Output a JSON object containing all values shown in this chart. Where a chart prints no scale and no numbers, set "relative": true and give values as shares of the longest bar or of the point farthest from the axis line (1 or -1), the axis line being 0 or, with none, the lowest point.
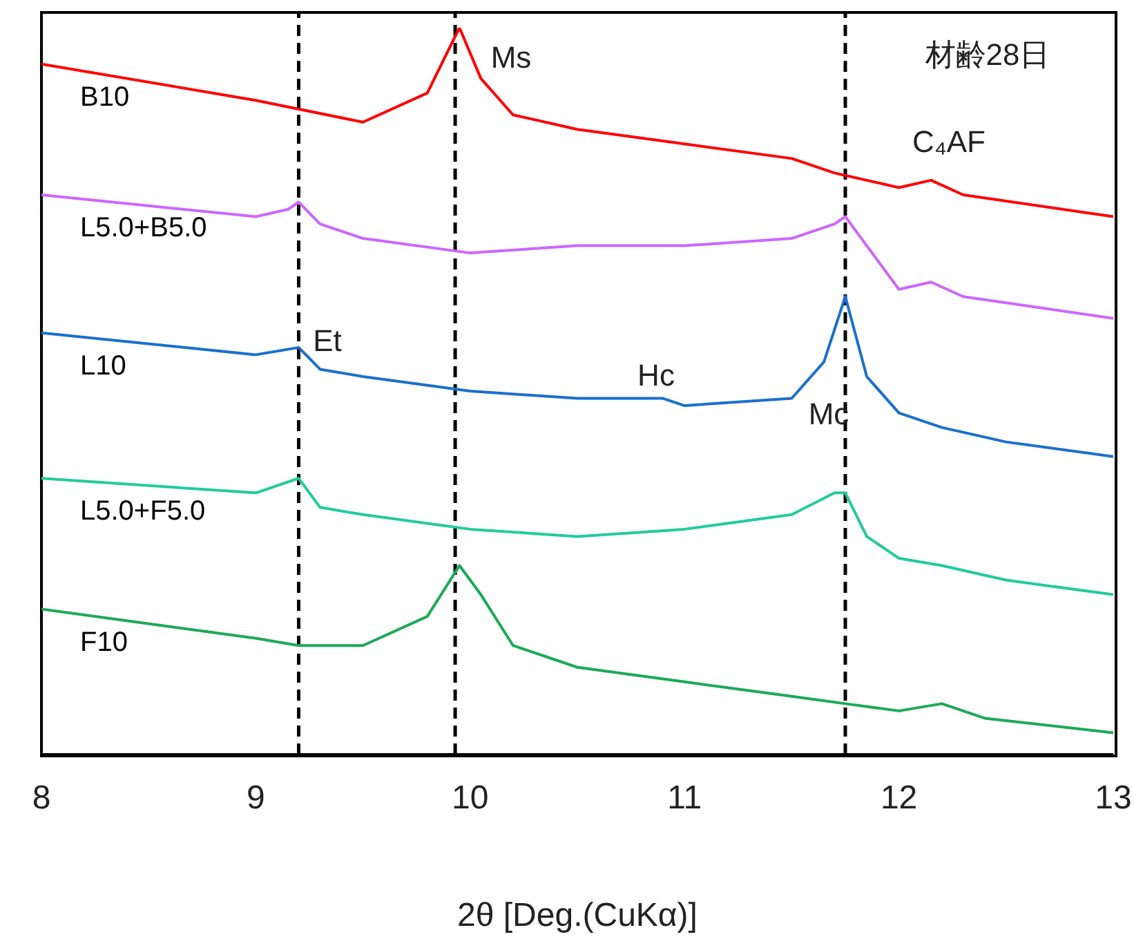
{
  "chart_data": {
    "type": "line",
    "relative": true,
    "xlabel": "2θ [Deg.(CuKα)]",
    "xlim": [
      8,
      13
    ],
    "xticks": [
      8,
      9,
      10,
      11,
      12,
      13
    ],
    "tick_labels": "x",
    "marker": "none",
    "line_style": "solid",
    "x": [
      8,
      9,
      9.5,
      9.8,
      9.95,
      10.05,
      10.2,
      10.5,
      11,
      11.5,
      11.7,
      12,
      12.15,
      12.3,
      13
    ],
    "series": [
      {
        "name": "B10",
        "color": "#ff0000",
        "values": [
          0.95,
          0.9,
          0.87,
          0.91,
          1.0,
          0.93,
          0.88,
          0.86,
          0.84,
          0.82,
          0.8,
          0.78,
          0.79,
          0.77,
          0.74
        ]
      },
      {
        "name": "L5.0+B5.0",
        "color": "#cc66ff",
        "x": [
          8,
          9,
          9.15,
          9.2,
          9.3,
          9.5,
          10,
          10.5,
          11,
          11.5,
          11.7,
          11.75,
          11.85,
          12,
          12.15,
          12.3,
          13
        ],
        "values": [
          0.77,
          0.74,
          0.75,
          0.76,
          0.73,
          0.71,
          0.69,
          0.7,
          0.7,
          0.71,
          0.73,
          0.74,
          0.7,
          0.64,
          0.65,
          0.63,
          0.6
        ]
      },
      {
        "name": "L10",
        "color": "#1a6fcc",
        "x": [
          8,
          9,
          9.2,
          9.3,
          9.5,
          10,
          10.5,
          10.9,
          11,
          11.5,
          11.65,
          11.75,
          11.85,
          12,
          12.2,
          12.5,
          13
        ],
        "values": [
          0.58,
          0.55,
          0.56,
          0.53,
          0.52,
          0.5,
          0.49,
          0.49,
          0.48,
          0.49,
          0.54,
          0.63,
          0.52,
          0.47,
          0.45,
          0.43,
          0.41
        ]
      },
      {
        "name": "L5.0+F5.0",
        "color": "#22cc99",
        "x": [
          8,
          9,
          9.2,
          9.3,
          9.5,
          10,
          10.5,
          11,
          11.5,
          11.7,
          11.75,
          11.85,
          12,
          12.2,
          12.5,
          13
        ],
        "values": [
          0.38,
          0.36,
          0.38,
          0.34,
          0.33,
          0.31,
          0.3,
          0.31,
          0.33,
          0.36,
          0.36,
          0.3,
          0.27,
          0.26,
          0.24,
          0.22
        ]
      },
      {
        "name": "F10",
        "color": "#1aaa55",
        "x": [
          8,
          9,
          9.2,
          9.5,
          9.8,
          9.95,
          10.05,
          10.2,
          10.5,
          11,
          11.5,
          11.75,
          12,
          12.2,
          12.4,
          13
        ],
        "values": [
          0.2,
          0.16,
          0.15,
          0.15,
          0.19,
          0.26,
          0.22,
          0.15,
          0.12,
          0.1,
          0.08,
          0.07,
          0.06,
          0.07,
          0.05,
          0.03
        ]
      }
    ],
    "ref_lines": [
      {
        "axis": "x",
        "value": 9.2,
        "color": "#000000",
        "line_style": "dashed"
      },
      {
        "axis": "x",
        "value": 9.93,
        "color": "#000000",
        "line_style": "dashed"
      },
      {
        "axis": "x",
        "value": 11.75,
        "color": "#000000",
        "line_style": "dashed"
      }
    ],
    "annotations": [
      "Ms",
      "Et",
      "Hc",
      "Mc",
      "C₄AF",
      "材齢28日"
    ]
  }
}
